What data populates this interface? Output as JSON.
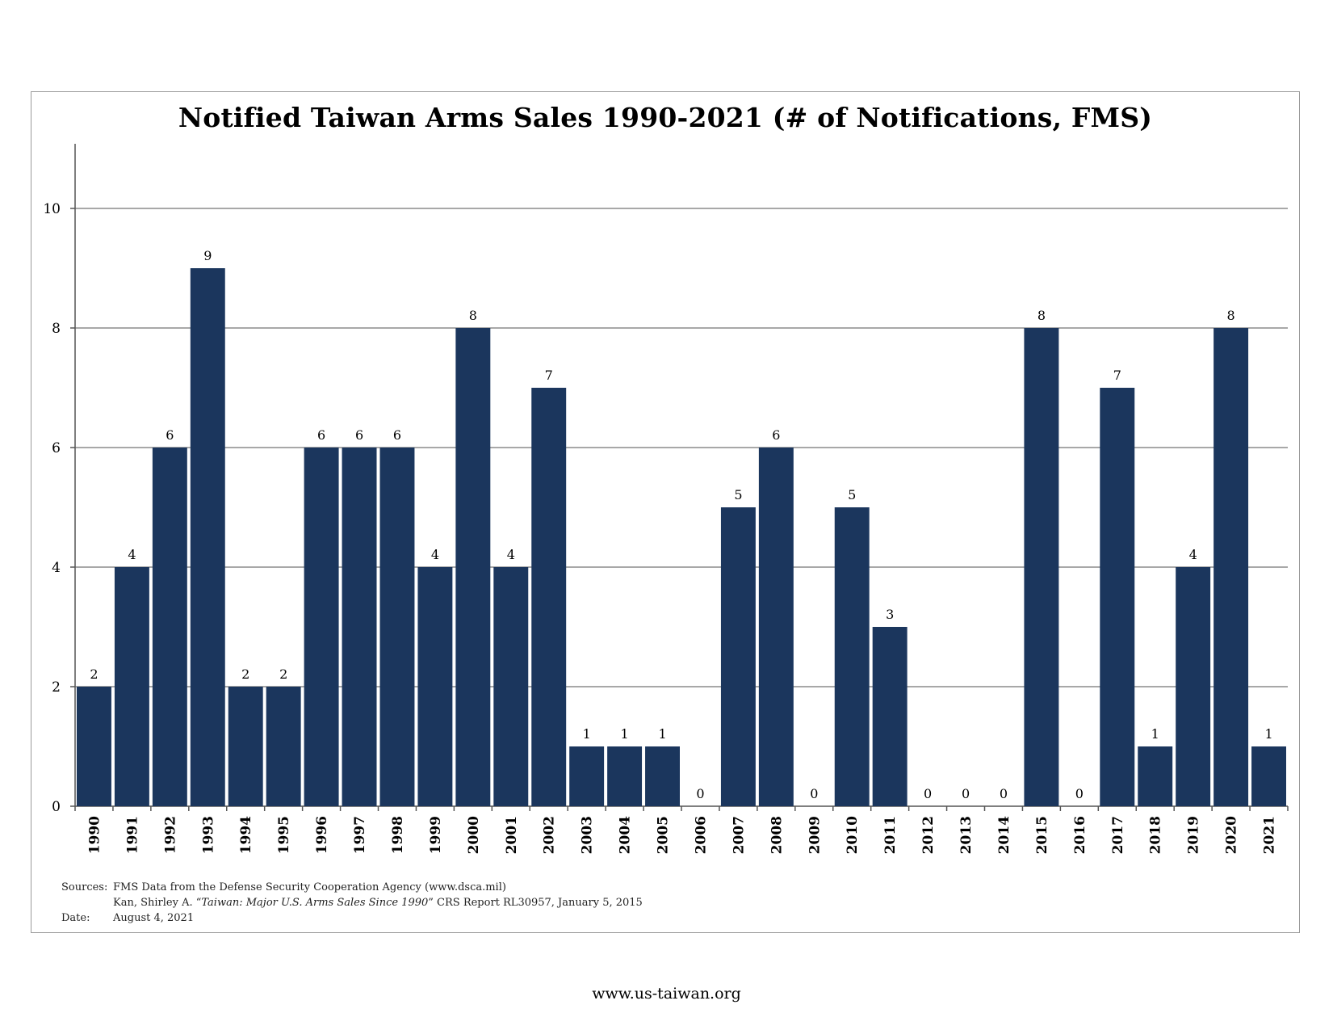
{
  "chart_data": {
    "type": "bar",
    "title": "Notified Taiwan Arms Sales 1990-2021 (# of Notifications, FMS)",
    "xlabel": "",
    "ylabel": "",
    "ylim": [
      0,
      11
    ],
    "yticks": [
      0,
      2,
      4,
      6,
      8,
      10
    ],
    "grid": true,
    "bar_color": "#1b365d",
    "grid_color": "#8c8c8c",
    "categories": [
      "1990",
      "1991",
      "1992",
      "1993",
      "1994",
      "1995",
      "1996",
      "1997",
      "1998",
      "1999",
      "2000",
      "2001",
      "2002",
      "2003",
      "2004",
      "2005",
      "2006",
      "2007",
      "2008",
      "2009",
      "2010",
      "2011",
      "2012",
      "2013",
      "2014",
      "2015",
      "2016",
      "2017",
      "2018",
      "2019",
      "2020",
      "2021"
    ],
    "values": [
      2,
      4,
      6,
      9,
      2,
      2,
      6,
      6,
      6,
      4,
      8,
      4,
      7,
      1,
      1,
      1,
      0,
      5,
      6,
      0,
      5,
      3,
      0,
      0,
      0,
      8,
      0,
      7,
      1,
      4,
      8,
      1
    ]
  },
  "notes": {
    "sources_label": "Sources:",
    "source_1": "FMS Data from the Defense Security Cooperation Agency (www.dsca.mil)",
    "source_2_prefix": "Kan, Shirley A. “",
    "source_2_italic": "Taiwan: Major U.S. Arms Sales Since 1990",
    "source_2_suffix": "” CRS Report RL30957, January 5, 2015",
    "date_label": "Date:",
    "date_value": "August 4, 2021"
  },
  "footer": {
    "url": "www.us-taiwan.org"
  }
}
